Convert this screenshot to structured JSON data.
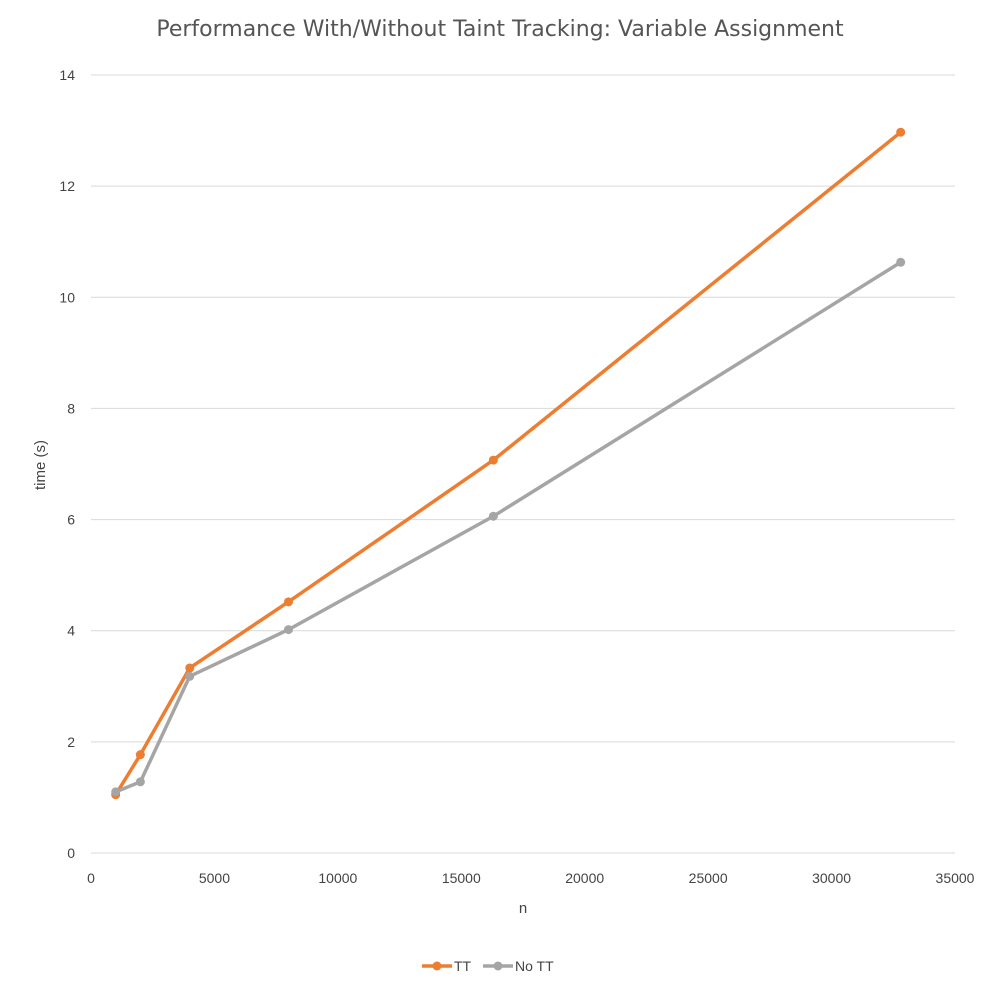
{
  "chart_data": {
    "type": "line",
    "title": "Performance With/Without Taint Tracking: Variable Assignment",
    "xlabel": "n",
    "ylabel": "time (s)",
    "xlim": [
      0,
      35000
    ],
    "ylim": [
      0,
      14
    ],
    "x_ticks": [
      "0",
      "5000",
      "10000",
      "15000",
      "20000",
      "25000",
      "30000",
      "35000"
    ],
    "y_ticks": [
      "0",
      "2",
      "4",
      "6",
      "8",
      "10",
      "12",
      "14"
    ],
    "grid": "horizontal",
    "legend_position": "bottom",
    "series": [
      {
        "name": "TT",
        "color": "#ed7d31",
        "x": [
          1000,
          2000,
          4000,
          8000,
          16300,
          32800
        ],
        "y": [
          1.05,
          1.77,
          3.33,
          4.52,
          7.07,
          12.97
        ]
      },
      {
        "name": "No TT",
        "color": "#a5a5a5",
        "x": [
          1000,
          2000,
          4000,
          8000,
          16300,
          32800
        ],
        "y": [
          1.1,
          1.28,
          3.18,
          4.02,
          6.06,
          10.63
        ]
      }
    ]
  }
}
